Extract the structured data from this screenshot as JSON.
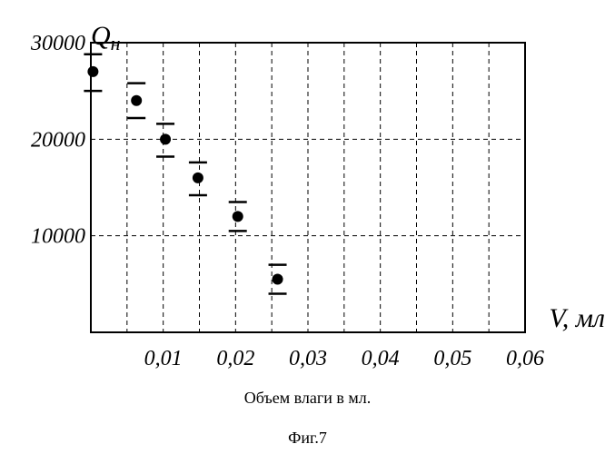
{
  "chart_data": {
    "type": "scatter",
    "title": "",
    "ylabel": "Q",
    "ylabel_sub": "н",
    "xlabel": "V, мл",
    "x_caption": "Объем влаги в мл.",
    "x_ticks": [
      "0,01",
      "0,02",
      "0,03",
      "0,04",
      "0,05",
      "0,06"
    ],
    "y_ticks": [
      "10000",
      "20000",
      "30000"
    ],
    "xlim": [
      0,
      0.06
    ],
    "ylim": [
      0,
      30000
    ],
    "grid": true,
    "x": [
      0.0003,
      0.0063,
      0.0103,
      0.0148,
      0.0203,
      0.0258
    ],
    "y": [
      27000,
      24000,
      20000,
      16000,
      12000,
      5500
    ],
    "error_low": [
      25000,
      22200,
      18200,
      14200,
      10500,
      4000
    ],
    "error_high": [
      28800,
      25800,
      21600,
      17600,
      13500,
      7000
    ],
    "colors": {
      "marker": "#000000",
      "grid": "#000000",
      "frame": "#000000"
    }
  },
  "figure_caption": "Фиг.7"
}
